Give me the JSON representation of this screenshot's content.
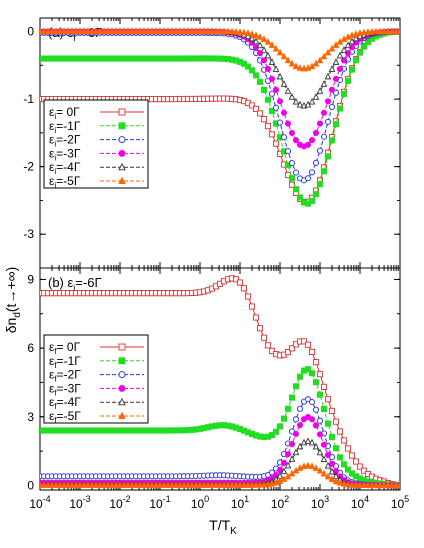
{
  "figure": {
    "ylabel": "δn",
    "ylabel_sub": "d",
    "ylabel_tail": "(t→+∞)",
    "xlabel": "T/T",
    "xlabel_sub": "K"
  },
  "chart_data": [
    {
      "type": "line",
      "panel_label": "(a)",
      "annotation": "ε",
      "annotation_sub": "f",
      "annotation_rest": "=-6Γ",
      "xscale": "log",
      "xlim": [
        0.0001,
        100000
      ],
      "ylim": [
        -3.5,
        0.2
      ],
      "x_ticks": [
        {
          "base": "10",
          "exp": "-4"
        },
        {
          "base": "10",
          "exp": "-3"
        },
        {
          "base": "10",
          "exp": "-2"
        },
        {
          "base": "10",
          "exp": "-1"
        },
        {
          "base": "10",
          "exp": "0"
        },
        {
          "base": "10",
          "exp": "1"
        },
        {
          "base": "10",
          "exp": "2"
        },
        {
          "base": "10",
          "exp": "3"
        },
        {
          "base": "10",
          "exp": "4"
        },
        {
          "base": "10",
          "exp": "5"
        }
      ],
      "y_ticks": [
        "0",
        "-1",
        "-2",
        "-3"
      ],
      "legend_position": "lower-left",
      "series": [
        {
          "name": "-1",
          "label_pre": "ε",
          "label_sub": "i",
          "label_post": "= 0Γ",
          "color": "#e03030",
          "marker": "square-open",
          "baseline": -1.0,
          "dip_center": 2.7,
          "dip_depth": 2.4,
          "dip_width": 0.9,
          "tail": 0.0
        },
        {
          "name": "-2",
          "label_pre": "ε",
          "label_sub": "i",
          "label_post": "=-1Γ",
          "color": "#22dd22",
          "marker": "square-filled",
          "baseline": -0.4,
          "dip_center": 2.7,
          "dip_depth": 2.5,
          "dip_width": 0.9,
          "tail": 0.0
        },
        {
          "name": "-3",
          "label_pre": "ε",
          "label_sub": "i",
          "label_post": "=-2Γ",
          "color": "#2233dd",
          "marker": "circle-open",
          "baseline": -0.02,
          "dip_center": 2.6,
          "dip_depth": 2.2,
          "dip_width": 0.85,
          "tail": 0.0
        },
        {
          "name": "-4",
          "label_pre": "ε",
          "label_sub": "i",
          "label_post": "=-3Γ",
          "color": "#ee00ee",
          "marker": "circle-filled",
          "baseline": 0.0,
          "dip_center": 2.6,
          "dip_depth": 1.7,
          "dip_width": 0.85,
          "tail": 0.0
        },
        {
          "name": "-5",
          "label_pre": "ε",
          "label_sub": "i",
          "label_post": "=-4Γ",
          "color": "#333333",
          "marker": "triangle-open",
          "baseline": 0.0,
          "dip_center": 2.6,
          "dip_depth": 1.1,
          "dip_width": 0.85,
          "tail": 0.0
        },
        {
          "name": "-6",
          "label_pre": "ε",
          "label_sub": "i",
          "label_post": "=-5Γ",
          "color": "#ff6600",
          "marker": "triangle-filled",
          "baseline": 0.0,
          "dip_center": 2.6,
          "dip_depth": 0.55,
          "dip_width": 0.8,
          "tail": 0.0
        }
      ]
    },
    {
      "type": "line",
      "panel_label": "(b)",
      "annotation": "ε",
      "annotation_sub": "i",
      "annotation_rest": "=-6Γ",
      "xscale": "log",
      "xlim": [
        0.0001,
        100000
      ],
      "ylim": [
        -0.2,
        9.5
      ],
      "x_ticks": [
        {
          "base": "10",
          "exp": "-4"
        },
        {
          "base": "10",
          "exp": "-3"
        },
        {
          "base": "10",
          "exp": "-2"
        },
        {
          "base": "10",
          "exp": "-1"
        },
        {
          "base": "10",
          "exp": "0"
        },
        {
          "base": "10",
          "exp": "1"
        },
        {
          "base": "10",
          "exp": "2"
        },
        {
          "base": "10",
          "exp": "3"
        },
        {
          "base": "10",
          "exp": "4"
        },
        {
          "base": "10",
          "exp": "5"
        }
      ],
      "y_ticks": [
        "0",
        "3",
        "6",
        "9"
      ],
      "legend_position": "center-left",
      "series": [
        {
          "name": "1",
          "label_pre": "ε",
          "label_sub": "f",
          "label_post": "= 0Γ",
          "color": "#e03030",
          "marker": "square-open",
          "baseline": 8.4,
          "bump_center": 0.95,
          "bump_height": 0.9,
          "bump_width": 0.55,
          "drop_center": 1.4,
          "drop_width": 0.22,
          "valley": 5.4,
          "peak_center": 2.65,
          "peak_height": 1.4,
          "peak_width": 0.45,
          "fall_center": 3.4,
          "fall_width": 0.35
        },
        {
          "name": "2",
          "label_pre": "ε",
          "label_sub": "f",
          "label_post": "=-1Γ",
          "color": "#22dd22",
          "marker": "square-filled",
          "baseline": 2.4,
          "bump_center": 0.6,
          "bump_height": 0.25,
          "bump_width": 0.55,
          "drop_center": 1.4,
          "drop_width": 0.25,
          "valley": 1.9,
          "peak_center": 2.7,
          "peak_height": 3.4,
          "peak_width": 0.55,
          "fall_center": 3.4,
          "fall_width": 0.35
        },
        {
          "name": "3",
          "label_pre": "ε",
          "label_sub": "f",
          "label_post": "=-2Γ",
          "color": "#2233dd",
          "marker": "circle-open",
          "baseline": 0.4,
          "bump_center": 0.5,
          "bump_height": 0.05,
          "bump_width": 0.5,
          "drop_center": 1.5,
          "drop_width": 0.3,
          "valley": 0.3,
          "peak_center": 2.7,
          "peak_height": 3.5,
          "peak_width": 0.55,
          "fall_center": 3.4,
          "fall_width": 0.35
        },
        {
          "name": "4",
          "label_pre": "ε",
          "label_sub": "f",
          "label_post": "=-3Γ",
          "color": "#ee00ee",
          "marker": "circle-filled",
          "baseline": 0.12,
          "bump_center": 0.5,
          "bump_height": 0.0,
          "bump_width": 0.5,
          "drop_center": 1.5,
          "drop_width": 0.3,
          "valley": 0.1,
          "peak_center": 2.7,
          "peak_height": 2.9,
          "peak_width": 0.55,
          "fall_center": 3.4,
          "fall_width": 0.35
        },
        {
          "name": "5",
          "label_pre": "ε",
          "label_sub": "f",
          "label_post": "=-4Γ",
          "color": "#333333",
          "marker": "triangle-open",
          "baseline": 0.04,
          "bump_center": 0.5,
          "bump_height": 0.0,
          "bump_width": 0.5,
          "drop_center": 1.5,
          "drop_width": 0.3,
          "valley": 0.03,
          "peak_center": 2.7,
          "peak_height": 1.9,
          "peak_width": 0.55,
          "fall_center": 3.4,
          "fall_width": 0.35
        },
        {
          "name": "6",
          "label_pre": "ε",
          "label_sub": "f",
          "label_post": "=-5Γ",
          "color": "#ff6600",
          "marker": "triangle-filled",
          "baseline": 0.01,
          "bump_center": 0.5,
          "bump_height": 0.0,
          "bump_width": 0.5,
          "drop_center": 1.5,
          "drop_width": 0.3,
          "valley": 0.01,
          "peak_center": 2.7,
          "peak_height": 0.85,
          "peak_width": 0.55,
          "fall_center": 3.4,
          "fall_width": 0.35
        }
      ]
    }
  ]
}
